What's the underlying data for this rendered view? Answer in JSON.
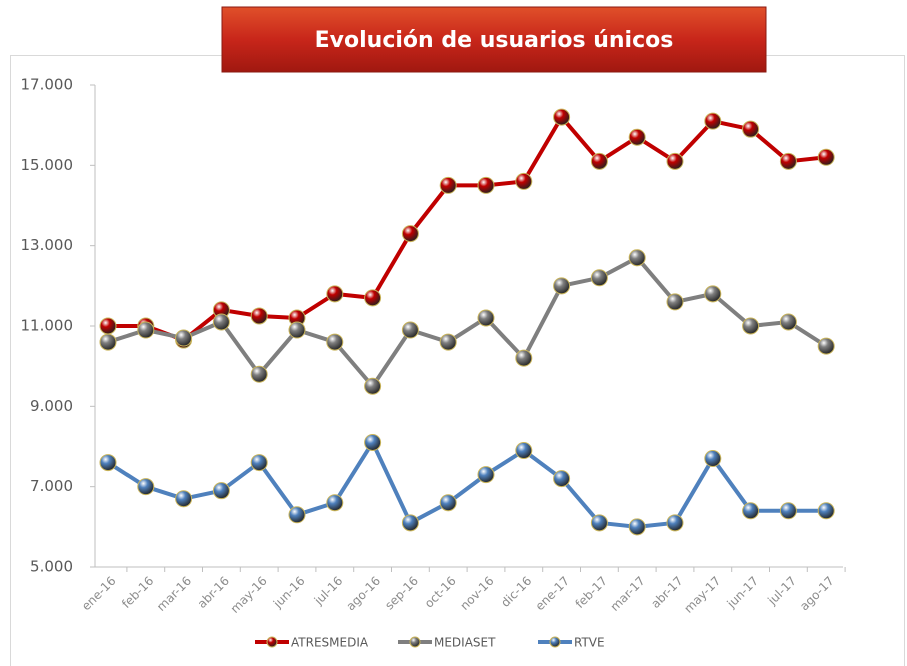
{
  "chart_data": {
    "type": "line",
    "title": "Evolución de usuarios únicos",
    "categories": [
      "ene-16",
      "feb-16",
      "mar-16",
      "abr-16",
      "may-16",
      "jun-16",
      "jul-16",
      "ago-16",
      "sep-16",
      "oct-16",
      "nov-16",
      "dic-16",
      "ene-17",
      "feb-17",
      "mar-17",
      "abr-17",
      "may-17",
      "jun-17",
      "jul-17",
      "ago-17"
    ],
    "series": [
      {
        "name": "ATRESMEDIA",
        "color": "#c00000",
        "values": [
          11000,
          11000,
          10650,
          11400,
          11250,
          11200,
          11800,
          11700,
          13300,
          14500,
          14500,
          14600,
          16200,
          15100,
          15700,
          15100,
          16100,
          15900,
          15100,
          15200
        ]
      },
      {
        "name": "MEDIASET",
        "color": "#7f7f7f",
        "values": [
          10600,
          10900,
          10700,
          11100,
          9800,
          10900,
          10600,
          9500,
          10900,
          10600,
          11200,
          10200,
          12000,
          12200,
          12700,
          11600,
          11800,
          11000,
          11100,
          10500
        ]
      },
      {
        "name": "RTVE",
        "color": "#4f81bd",
        "values": [
          7600,
          7000,
          6700,
          6900,
          7600,
          6300,
          6600,
          8100,
          6100,
          6600,
          7300,
          7900,
          7200,
          6100,
          6000,
          6100,
          7700,
          6400,
          6400,
          6400
        ]
      }
    ],
    "ylim": [
      5000,
      17000
    ],
    "yticks": [
      {
        "value": 5000,
        "label": "5.000"
      },
      {
        "value": 7000,
        "label": "7.000"
      },
      {
        "value": 9000,
        "label": "9.000"
      },
      {
        "value": 11000,
        "label": "11.000"
      },
      {
        "value": 13000,
        "label": "13.000"
      },
      {
        "value": 15000,
        "label": "15.000"
      },
      {
        "value": 17000,
        "label": "17.000"
      }
    ],
    "grid": false,
    "legend": "bottom"
  }
}
